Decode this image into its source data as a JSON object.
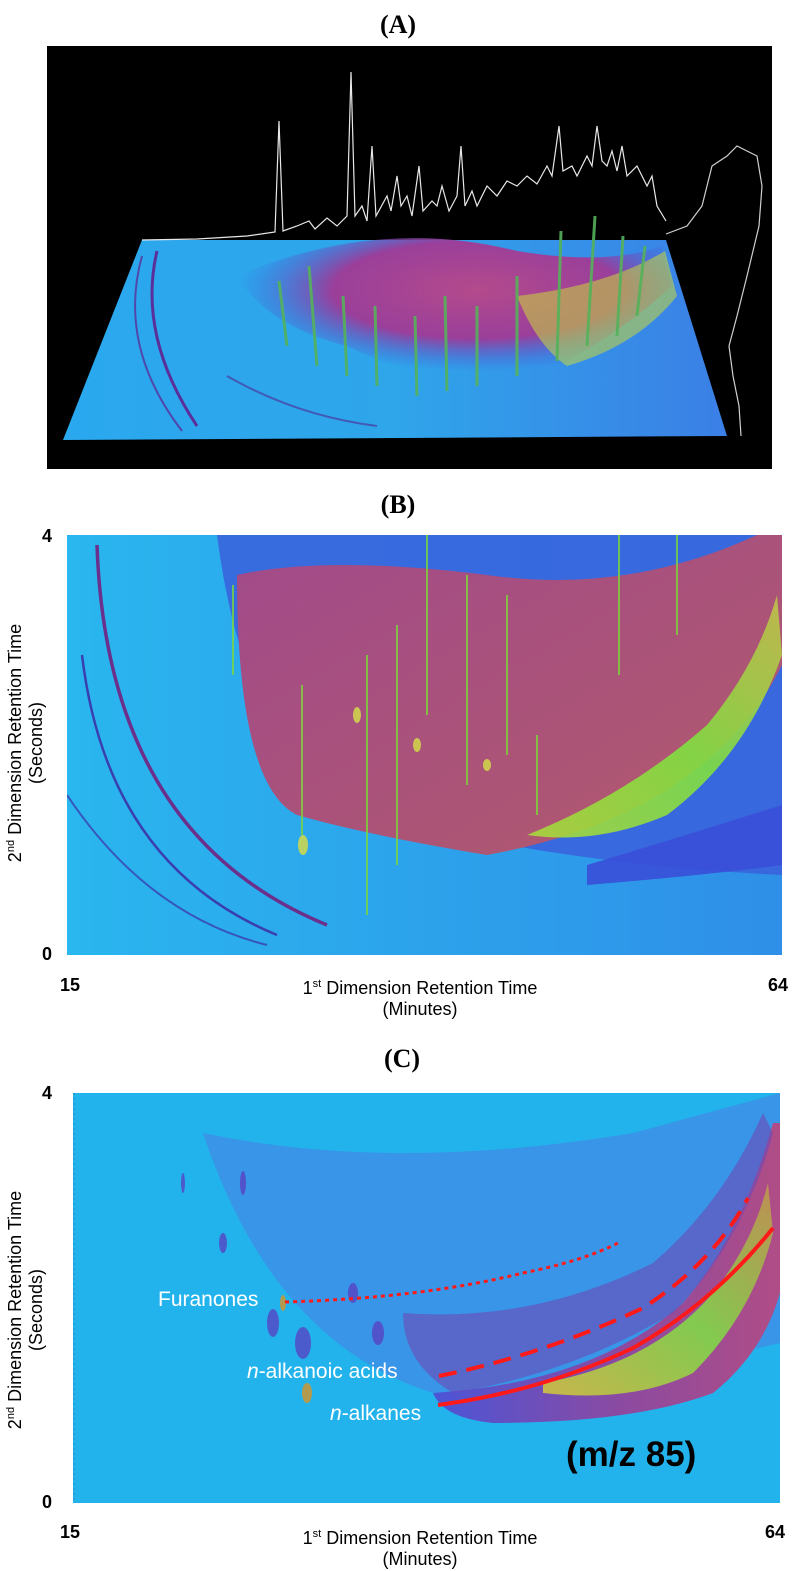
{
  "panels": {
    "a": {
      "label": "(A)"
    },
    "b": {
      "label": "(B)",
      "y_label_line1_pre": "2",
      "y_label_line1_sup": "nd",
      "y_label_line1_post": " Dimension Retention Time",
      "y_label_line2": "(Seconds)",
      "x_label_line1_pre": "1",
      "x_label_line1_sup": "st",
      "x_label_line1_post": " Dimension Retention Time",
      "x_label_line2": "(Minutes)",
      "x_ticks": [
        "15",
        "64"
      ],
      "y_ticks": [
        "4",
        "0"
      ]
    },
    "c": {
      "label": "(C)",
      "y_label_line1_pre": "2",
      "y_label_line1_sup": "nd",
      "y_label_line1_post": " Dimension Retention Time",
      "y_label_line2": "(Seconds)",
      "x_label_line1_pre": "1",
      "x_label_line1_sup": "st",
      "x_label_line1_post": " Dimension Retention Time",
      "x_label_line2": "(Minutes)",
      "x_ticks": [
        "15",
        "64"
      ],
      "y_ticks": [
        "4",
        "0"
      ],
      "annotations": {
        "furanones": "Furanones",
        "acids_italic": "n",
        "acids_rest": "-alkanoic acids",
        "alkanes_italic": "n",
        "alkanes_rest": "-alkanes"
      },
      "mz_label": "(m/z 85)"
    }
  },
  "colors": {
    "background_blue": "#22b4ec",
    "band_blue": "#3d5fe0",
    "band_magenta": "#a24a8e",
    "peak_green": "#7ddb3a",
    "annotation_red": "#ff1a1a"
  }
}
